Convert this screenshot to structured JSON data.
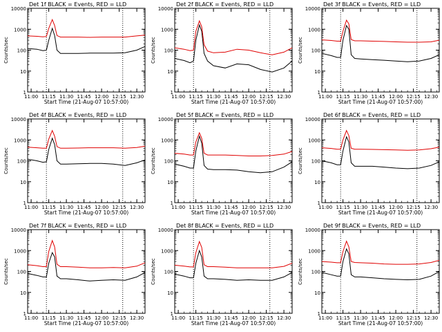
{
  "figure": {
    "colors": {
      "events": "#000000",
      "lld": "#e00000",
      "axes": "#000000",
      "background": "#ffffff"
    }
  },
  "chart_data": [
    {
      "type": "line",
      "title": "Det 1f BLACK = Events, RED = LLD",
      "xlabel": "Start Time (21-Aug-07 10:57:00)",
      "ylabel": "Counts/sec",
      "yscale": "log",
      "xlim": [
        "10:57",
        "12:37"
      ],
      "ylim": [
        1,
        10000
      ],
      "x_ticks": [
        "11:00",
        "11:15",
        "11:30",
        "11:45",
        "12:00",
        "12:15",
        "12:30"
      ],
      "y_ticks": [
        "1",
        "10",
        "100",
        "1000",
        "10000"
      ],
      "vlines": [
        "11:13",
        "12:18"
      ],
      "series": [
        {
          "color": "black",
          "x": [
            "10:57",
            "11:05",
            "11:10",
            "11:13",
            "11:15",
            "11:18",
            "11:20",
            "11:22",
            "11:25",
            "11:30",
            "11:40",
            "11:50",
            "12:00",
            "12:10",
            "12:20",
            "12:30",
            "12:37"
          ],
          "y": [
            120,
            110,
            95,
            100,
            300,
            1100,
            500,
            100,
            70,
            70,
            70,
            72,
            72,
            72,
            75,
            100,
            150
          ]
        },
        {
          "color": "red",
          "x": [
            "10:57",
            "11:05",
            "11:10",
            "11:13",
            "11:15",
            "11:18",
            "11:20",
            "11:22",
            "11:25",
            "11:30",
            "11:40",
            "11:50",
            "12:00",
            "12:10",
            "12:20",
            "12:30",
            "12:37"
          ],
          "y": [
            480,
            460,
            430,
            450,
            1100,
            2900,
            1500,
            500,
            420,
            420,
            420,
            410,
            420,
            420,
            420,
            480,
            520
          ]
        }
      ]
    },
    {
      "type": "line",
      "title": "Det 2f BLACK = Events, RED = LLD",
      "xlabel": "Start Time (21-Aug-07 10:57:00)",
      "ylabel": "Counts/sec",
      "yscale": "log",
      "xlim": [
        "10:57",
        "12:37"
      ],
      "ylim": [
        1,
        10000
      ],
      "x_ticks": [
        "11:00",
        "11:15",
        "11:30",
        "11:45",
        "12:00",
        "12:15",
        "12:30"
      ],
      "y_ticks": [
        "1",
        "10",
        "100",
        "1000",
        "10000"
      ],
      "vlines": [
        "11:13",
        "12:18"
      ],
      "series": [
        {
          "color": "black",
          "x": [
            "10:57",
            "11:05",
            "11:10",
            "11:13",
            "11:15",
            "11:18",
            "11:20",
            "11:22",
            "11:25",
            "11:30",
            "11:40",
            "11:50",
            "12:00",
            "12:10",
            "12:20",
            "12:30",
            "12:37"
          ],
          "y": [
            40,
            32,
            25,
            30,
            300,
            1600,
            800,
            70,
            30,
            18,
            14,
            22,
            20,
            12,
            9,
            14,
            30
          ]
        },
        {
          "color": "red",
          "x": [
            "10:57",
            "11:05",
            "11:10",
            "11:13",
            "11:15",
            "11:18",
            "11:20",
            "11:22",
            "11:25",
            "11:30",
            "11:40",
            "11:50",
            "12:00",
            "12:10",
            "12:20",
            "12:30",
            "12:37"
          ],
          "y": [
            130,
            110,
            95,
            100,
            800,
            2500,
            1300,
            180,
            90,
            75,
            80,
            110,
            100,
            75,
            60,
            80,
            130
          ]
        }
      ]
    },
    {
      "type": "line",
      "title": "Det 3f BLACK = Events, RED = LLD",
      "xlabel": "Start Time (21-Aug-07 10:57:00)",
      "ylabel": "Counts/sec",
      "yscale": "log",
      "xlim": [
        "10:57",
        "12:37"
      ],
      "ylim": [
        1,
        10000
      ],
      "x_ticks": [
        "11:00",
        "11:15",
        "11:30",
        "11:45",
        "12:00",
        "12:15",
        "12:30"
      ],
      "y_ticks": [
        "1",
        "10",
        "100",
        "1000",
        "10000"
      ],
      "vlines": [
        "11:13",
        "12:18"
      ],
      "series": [
        {
          "color": "black",
          "x": [
            "10:57",
            "11:05",
            "11:10",
            "11:13",
            "11:15",
            "11:18",
            "11:20",
            "11:22",
            "11:25",
            "11:30",
            "11:40",
            "11:50",
            "12:00",
            "12:10",
            "12:20",
            "12:30",
            "12:37"
          ],
          "y": [
            70,
            55,
            45,
            45,
            300,
            1500,
            1000,
            60,
            40,
            38,
            35,
            33,
            30,
            28,
            30,
            40,
            60
          ]
        },
        {
          "color": "red",
          "x": [
            "10:57",
            "11:05",
            "11:10",
            "11:13",
            "11:15",
            "11:18",
            "11:20",
            "11:22",
            "11:25",
            "11:30",
            "11:40",
            "11:50",
            "12:00",
            "12:10",
            "12:20",
            "12:30",
            "12:37"
          ],
          "y": [
            310,
            290,
            270,
            270,
            800,
            2700,
            1800,
            320,
            280,
            280,
            270,
            260,
            250,
            240,
            240,
            250,
            300
          ]
        }
      ]
    },
    {
      "type": "line",
      "title": "Det 4f BLACK = Events, RED = LLD",
      "xlabel": "Start Time (21-Aug-07 10:57:00)",
      "ylabel": "Counts/sec",
      "yscale": "log",
      "xlim": [
        "10:57",
        "12:37"
      ],
      "ylim": [
        1,
        10000
      ],
      "x_ticks": [
        "11:00",
        "11:15",
        "11:30",
        "11:45",
        "12:00",
        "12:15",
        "12:30"
      ],
      "y_ticks": [
        "1",
        "10",
        "100",
        "1000",
        "10000"
      ],
      "vlines": [
        "11:13",
        "12:18"
      ],
      "series": [
        {
          "color": "black",
          "x": [
            "10:57",
            "11:05",
            "11:10",
            "11:13",
            "11:15",
            "11:18",
            "11:20",
            "11:22",
            "11:25",
            "11:30",
            "11:40",
            "11:50",
            "12:00",
            "12:10",
            "12:20",
            "12:30",
            "12:37"
          ],
          "y": [
            120,
            100,
            85,
            90,
            350,
            1200,
            600,
            100,
            70,
            70,
            72,
            75,
            75,
            70,
            60,
            80,
            110
          ]
        },
        {
          "color": "red",
          "x": [
            "10:57",
            "11:05",
            "11:10",
            "11:13",
            "11:15",
            "11:18",
            "11:20",
            "11:22",
            "11:25",
            "11:30",
            "11:40",
            "11:50",
            "12:00",
            "12:10",
            "12:20",
            "12:30",
            "12:37"
          ],
          "y": [
            450,
            420,
            400,
            400,
            1100,
            2800,
            1500,
            480,
            400,
            400,
            410,
            420,
            420,
            420,
            400,
            430,
            500
          ]
        }
      ]
    },
    {
      "type": "line",
      "title": "Det 5f BLACK = Events, RED = LLD",
      "xlabel": "Start Time (21-Aug-07 10:57:00)",
      "ylabel": "Counts/sec",
      "yscale": "log",
      "xlim": [
        "10:57",
        "12:37"
      ],
      "ylim": [
        1,
        10000
      ],
      "x_ticks": [
        "11:00",
        "11:15",
        "11:30",
        "11:45",
        "12:00",
        "12:15",
        "12:30"
      ],
      "y_ticks": [
        "1",
        "10",
        "100",
        "1000",
        "10000"
      ],
      "vlines": [
        "11:13",
        "12:18"
      ],
      "series": [
        {
          "color": "black",
          "x": [
            "10:57",
            "11:05",
            "11:10",
            "11:13",
            "11:15",
            "11:18",
            "11:20",
            "11:22",
            "11:25",
            "11:30",
            "11:40",
            "11:50",
            "12:00",
            "12:10",
            "12:20",
            "12:30",
            "12:37"
          ],
          "y": [
            70,
            55,
            45,
            45,
            300,
            1500,
            700,
            60,
            40,
            38,
            38,
            36,
            30,
            27,
            30,
            50,
            90
          ]
        },
        {
          "color": "red",
          "x": [
            "10:57",
            "11:05",
            "11:10",
            "11:13",
            "11:15",
            "11:18",
            "11:20",
            "11:22",
            "11:25",
            "11:30",
            "11:40",
            "11:50",
            "12:00",
            "12:10",
            "12:20",
            "12:30",
            "12:37"
          ],
          "y": [
            230,
            210,
            190,
            190,
            800,
            2200,
            1200,
            230,
            190,
            190,
            190,
            180,
            170,
            170,
            180,
            210,
            280
          ]
        }
      ]
    },
    {
      "type": "line",
      "title": "Det 6f BLACK = Events, RED = LLD",
      "xlabel": "Start Time (21-Aug-07 10:57:00)",
      "ylabel": "Counts/sec",
      "yscale": "log",
      "xlim": [
        "10:57",
        "12:37"
      ],
      "ylim": [
        1,
        10000
      ],
      "x_ticks": [
        "11:00",
        "11:15",
        "11:30",
        "11:45",
        "12:00",
        "12:15",
        "12:30"
      ],
      "y_ticks": [
        "1",
        "10",
        "100",
        "1000",
        "10000"
      ],
      "vlines": [
        "11:13",
        "12:18"
      ],
      "series": [
        {
          "color": "black",
          "x": [
            "10:57",
            "11:05",
            "11:10",
            "11:13",
            "11:15",
            "11:18",
            "11:20",
            "11:22",
            "11:25",
            "11:30",
            "11:40",
            "11:50",
            "12:00",
            "12:10",
            "12:20",
            "12:30",
            "12:37"
          ],
          "y": [
            100,
            80,
            65,
            65,
            300,
            1400,
            800,
            80,
            55,
            55,
            55,
            50,
            45,
            42,
            45,
            60,
            90
          ]
        },
        {
          "color": "red",
          "x": [
            "10:57",
            "11:05",
            "11:10",
            "11:13",
            "11:15",
            "11:18",
            "11:20",
            "11:22",
            "11:25",
            "11:30",
            "11:40",
            "11:50",
            "12:00",
            "12:10",
            "12:20",
            "12:30",
            "12:37"
          ],
          "y": [
            420,
            390,
            360,
            360,
            1000,
            2800,
            1600,
            400,
            360,
            360,
            350,
            340,
            330,
            320,
            330,
            380,
            450
          ]
        }
      ]
    },
    {
      "type": "line",
      "title": "Det 7f BLACK = Events, RED = LLD",
      "xlabel": "Start Time (21-Aug-07 10:57:00)",
      "ylabel": "Counts/sec",
      "yscale": "log",
      "xlim": [
        "10:57",
        "12:37"
      ],
      "ylim": [
        1,
        10000
      ],
      "x_ticks": [
        "11:00",
        "11:15",
        "11:30",
        "11:45",
        "12:00",
        "12:15",
        "12:30"
      ],
      "y_ticks": [
        "1",
        "10",
        "100",
        "1000",
        "10000"
      ],
      "vlines": [
        "11:13",
        "12:18"
      ],
      "series": [
        {
          "color": "black",
          "x": [
            "10:57",
            "11:05",
            "11:10",
            "11:13",
            "11:15",
            "11:18",
            "11:20",
            "11:22",
            "11:25",
            "11:30",
            "11:40",
            "11:50",
            "12:00",
            "12:10",
            "12:20",
            "12:30",
            "12:37"
          ],
          "y": [
            80,
            65,
            55,
            55,
            250,
            800,
            500,
            60,
            45,
            45,
            40,
            35,
            38,
            40,
            38,
            55,
            90
          ]
        },
        {
          "color": "red",
          "x": [
            "10:57",
            "11:05",
            "11:10",
            "11:13",
            "11:15",
            "11:18",
            "11:20",
            "11:22",
            "11:25",
            "11:30",
            "11:40",
            "11:50",
            "12:00",
            "12:10",
            "12:20",
            "12:30",
            "12:37"
          ],
          "y": [
            210,
            190,
            170,
            170,
            900,
            3000,
            1500,
            220,
            170,
            170,
            160,
            150,
            150,
            155,
            150,
            180,
            260
          ]
        }
      ]
    },
    {
      "type": "line",
      "title": "Det 8f BLACK = Events, RED = LLD",
      "xlabel": "Start Time (21-Aug-07 10:57:00)",
      "ylabel": "Counts/sec",
      "yscale": "log",
      "xlim": [
        "10:57",
        "12:37"
      ],
      "ylim": [
        1,
        10000
      ],
      "x_ticks": [
        "11:00",
        "11:15",
        "11:30",
        "11:45",
        "12:00",
        "12:15",
        "12:30"
      ],
      "y_ticks": [
        "1",
        "10",
        "100",
        "1000",
        "10000"
      ],
      "vlines": [
        "11:13",
        "12:18"
      ],
      "series": [
        {
          "color": "black",
          "x": [
            "10:57",
            "11:05",
            "11:10",
            "11:13",
            "11:15",
            "11:18",
            "11:20",
            "11:22",
            "11:25",
            "11:30",
            "11:40",
            "11:50",
            "12:00",
            "12:10",
            "12:20",
            "12:30",
            "12:37"
          ],
          "y": [
            75,
            60,
            50,
            50,
            250,
            1000,
            500,
            60,
            45,
            45,
            42,
            38,
            40,
            38,
            38,
            55,
            90
          ]
        },
        {
          "color": "red",
          "x": [
            "10:57",
            "11:05",
            "11:10",
            "11:13",
            "11:15",
            "11:18",
            "11:20",
            "11:22",
            "11:25",
            "11:30",
            "11:40",
            "11:50",
            "12:00",
            "12:10",
            "12:20",
            "12:30",
            "12:37"
          ],
          "y": [
            200,
            180,
            165,
            165,
            800,
            2700,
            1400,
            210,
            170,
            170,
            160,
            150,
            150,
            150,
            150,
            175,
            250
          ]
        }
      ]
    },
    {
      "type": "line",
      "title": "Det 9f BLACK = Events, RED = LLD",
      "xlabel": "Start Time (21-Aug-07 10:57:00)",
      "ylabel": "Counts/sec",
      "yscale": "log",
      "xlim": [
        "10:57",
        "12:37"
      ],
      "ylim": [
        1,
        10000
      ],
      "x_ticks": [
        "11:00",
        "11:15",
        "11:30",
        "11:45",
        "12:00",
        "12:15",
        "12:30"
      ],
      "y_ticks": [
        "1",
        "10",
        "100",
        "1000",
        "10000"
      ],
      "vlines": [
        "11:13",
        "12:18"
      ],
      "series": [
        {
          "color": "black",
          "x": [
            "10:57",
            "11:05",
            "11:10",
            "11:13",
            "11:15",
            "11:18",
            "11:20",
            "11:22",
            "11:25",
            "11:30",
            "11:40",
            "11:50",
            "12:00",
            "12:10",
            "12:20",
            "12:30",
            "12:37"
          ],
          "y": [
            90,
            70,
            60,
            60,
            300,
            1200,
            700,
            70,
            55,
            55,
            50,
            45,
            42,
            40,
            42,
            60,
            100
          ]
        },
        {
          "color": "red",
          "x": [
            "10:57",
            "11:05",
            "11:10",
            "11:13",
            "11:15",
            "11:18",
            "11:20",
            "11:22",
            "11:25",
            "11:30",
            "11:40",
            "11:50",
            "12:00",
            "12:10",
            "12:20",
            "12:30",
            "12:37"
          ],
          "y": [
            300,
            280,
            260,
            260,
            900,
            2800,
            1500,
            300,
            270,
            260,
            250,
            230,
            220,
            220,
            230,
            270,
            340
          ]
        }
      ]
    }
  ]
}
